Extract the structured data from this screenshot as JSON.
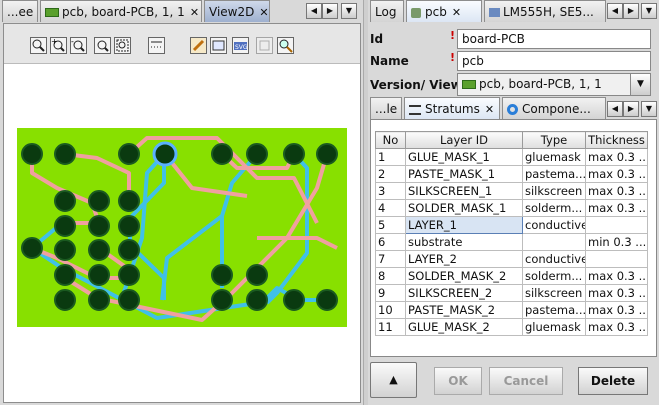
{
  "left_tabs": [
    {
      "label": "...ee"
    },
    {
      "label": "pcb, board-PCB, 1, 1"
    },
    {
      "label": "View2D"
    }
  ],
  "right_tabs": [
    {
      "label": "Log"
    },
    {
      "label": "pcb"
    },
    {
      "label": "LM555H, SE5..."
    }
  ],
  "form": {
    "id_label": "Id",
    "id_value": "board-PCB",
    "name_label": "Name",
    "name_value": "pcb",
    "version_label": "Version/ View",
    "version_value": "pcb, board-PCB, 1, 1"
  },
  "sub_tabs": [
    {
      "label": "...le"
    },
    {
      "label": "Stratums"
    },
    {
      "label": "Compone..."
    }
  ],
  "table": {
    "headers": [
      "No",
      "Layer ID",
      "Type",
      "Thickness"
    ],
    "rows": [
      [
        "1",
        "GLUE_MASK_1",
        "gluemask",
        "max 0.3 ..."
      ],
      [
        "2",
        "PASTE_MASK_1",
        "pastema...",
        "max 0.3 ..."
      ],
      [
        "3",
        "SILKSCREEN_1",
        "silkscreen",
        "max 0.3 ..."
      ],
      [
        "4",
        "SOLDER_MASK_1",
        "solderm...",
        "max 0.3 ..."
      ],
      [
        "5",
        "LAYER_1",
        "conductive",
        ""
      ],
      [
        "6",
        "substrate",
        "",
        "min 0.3 ..."
      ],
      [
        "7",
        "LAYER_2",
        "conductive",
        ""
      ],
      [
        "8",
        "SOLDER_MASK_2",
        "solderm...",
        "max 0.3 ..."
      ],
      [
        "9",
        "SILKSCREEN_2",
        "silkscreen",
        "max 0.3 ..."
      ],
      [
        "10",
        "PASTE_MASK_2",
        "pastema...",
        "max 0.3 ..."
      ],
      [
        "11",
        "GLUE_MASK_2",
        "gluemask",
        "max 0.3 ..."
      ]
    ]
  },
  "buttons": {
    "up": "▲",
    "ok": "OK",
    "cancel": "Cancel",
    "delete": "Delete"
  },
  "icons": {
    "toolbar": [
      "zoom-area-icon",
      "zoom-in-icon",
      "zoom-out-icon",
      "zoom-fit-icon",
      "zoom-selection-icon",
      "grid-toggle-icon",
      "pencil-icon",
      "export-image-icon",
      "export-svg-icon",
      "layers-icon",
      "magnify-icon"
    ]
  },
  "colors": {
    "board": "#88e000",
    "trace_top": "#f0a0a0",
    "trace_bottom": "#40c0e8",
    "pad": "#0a3a10",
    "selected_tab": "#dce6f4"
  }
}
